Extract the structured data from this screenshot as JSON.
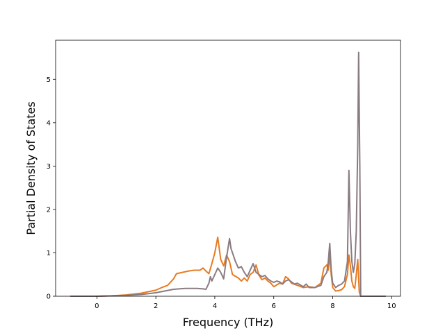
{
  "chart_data": {
    "type": "line",
    "title": "",
    "xlabel": "Frequency (THz)",
    "ylabel": "Partial Density of States",
    "xlim": [
      -1.4,
      10.3
    ],
    "ylim": [
      0,
      5.9
    ],
    "xticks": [
      0,
      2,
      4,
      6,
      8,
      10
    ],
    "yticks": [
      0,
      1,
      2,
      3,
      4,
      5
    ],
    "xtick_labels": [
      "0",
      "2",
      "4",
      "6",
      "8",
      "10"
    ],
    "ytick_labels": [
      "0",
      "1",
      "2",
      "3",
      "4",
      "5"
    ],
    "grid": false,
    "legend": "none",
    "series": [
      {
        "color": "#e87b21",
        "points": [
          [
            -0.9,
            0
          ],
          [
            0,
            0
          ],
          [
            0.5,
            0.01
          ],
          [
            1.0,
            0.03
          ],
          [
            1.5,
            0.07
          ],
          [
            2.0,
            0.14
          ],
          [
            2.2,
            0.2
          ],
          [
            2.4,
            0.25
          ],
          [
            2.6,
            0.4
          ],
          [
            2.7,
            0.52
          ],
          [
            2.9,
            0.55
          ],
          [
            3.1,
            0.58
          ],
          [
            3.3,
            0.6
          ],
          [
            3.5,
            0.6
          ],
          [
            3.6,
            0.65
          ],
          [
            3.7,
            0.58
          ],
          [
            3.8,
            0.52
          ],
          [
            3.9,
            0.75
          ],
          [
            4.0,
            1.0
          ],
          [
            4.1,
            1.36
          ],
          [
            4.2,
            0.85
          ],
          [
            4.3,
            0.7
          ],
          [
            4.4,
            0.95
          ],
          [
            4.5,
            0.8
          ],
          [
            4.6,
            0.5
          ],
          [
            4.8,
            0.42
          ],
          [
            4.9,
            0.35
          ],
          [
            5.0,
            0.42
          ],
          [
            5.1,
            0.35
          ],
          [
            5.2,
            0.5
          ],
          [
            5.3,
            0.55
          ],
          [
            5.4,
            0.72
          ],
          [
            5.5,
            0.48
          ],
          [
            5.6,
            0.38
          ],
          [
            5.7,
            0.42
          ],
          [
            5.8,
            0.35
          ],
          [
            5.9,
            0.3
          ],
          [
            6.0,
            0.22
          ],
          [
            6.1,
            0.26
          ],
          [
            6.2,
            0.3
          ],
          [
            6.3,
            0.28
          ],
          [
            6.4,
            0.45
          ],
          [
            6.5,
            0.4
          ],
          [
            6.6,
            0.3
          ],
          [
            6.8,
            0.25
          ],
          [
            7.0,
            0.2
          ],
          [
            7.2,
            0.22
          ],
          [
            7.4,
            0.2
          ],
          [
            7.6,
            0.3
          ],
          [
            7.7,
            0.65
          ],
          [
            7.8,
            0.72
          ],
          [
            7.85,
            0.6
          ],
          [
            7.9,
            0.95
          ],
          [
            7.95,
            0.5
          ],
          [
            8.0,
            0.2
          ],
          [
            8.1,
            0.12
          ],
          [
            8.2,
            0.13
          ],
          [
            8.3,
            0.15
          ],
          [
            8.4,
            0.22
          ],
          [
            8.5,
            0.5
          ],
          [
            8.55,
            0.95
          ],
          [
            8.6,
            0.7
          ],
          [
            8.65,
            0.35
          ],
          [
            8.7,
            0.22
          ],
          [
            8.75,
            0.18
          ],
          [
            8.8,
            0.5
          ],
          [
            8.85,
            0.85
          ],
          [
            8.9,
            0.1
          ],
          [
            8.95,
            0
          ],
          [
            9.2,
            0
          ],
          [
            9.8,
            0
          ]
        ]
      },
      {
        "color": "#8a7b82",
        "points": [
          [
            -0.9,
            0
          ],
          [
            0,
            0
          ],
          [
            0.5,
            0.01
          ],
          [
            1.0,
            0.02
          ],
          [
            1.5,
            0.04
          ],
          [
            2.0,
            0.08
          ],
          [
            2.3,
            0.12
          ],
          [
            2.6,
            0.16
          ],
          [
            3.0,
            0.18
          ],
          [
            3.4,
            0.18
          ],
          [
            3.6,
            0.17
          ],
          [
            3.7,
            0.16
          ],
          [
            3.8,
            0.3
          ],
          [
            3.85,
            0.45
          ],
          [
            3.9,
            0.35
          ],
          [
            4.0,
            0.5
          ],
          [
            4.1,
            0.65
          ],
          [
            4.2,
            0.55
          ],
          [
            4.3,
            0.4
          ],
          [
            4.4,
            0.9
          ],
          [
            4.5,
            1.33
          ],
          [
            4.55,
            1.1
          ],
          [
            4.6,
            1.0
          ],
          [
            4.7,
            0.8
          ],
          [
            4.8,
            0.65
          ],
          [
            4.9,
            0.68
          ],
          [
            5.0,
            0.55
          ],
          [
            5.1,
            0.45
          ],
          [
            5.2,
            0.6
          ],
          [
            5.3,
            0.75
          ],
          [
            5.4,
            0.55
          ],
          [
            5.5,
            0.5
          ],
          [
            5.6,
            0.45
          ],
          [
            5.7,
            0.48
          ],
          [
            5.8,
            0.4
          ],
          [
            5.9,
            0.35
          ],
          [
            6.0,
            0.32
          ],
          [
            6.1,
            0.35
          ],
          [
            6.2,
            0.33
          ],
          [
            6.3,
            0.28
          ],
          [
            6.4,
            0.35
          ],
          [
            6.5,
            0.38
          ],
          [
            6.6,
            0.33
          ],
          [
            6.7,
            0.28
          ],
          [
            6.8,
            0.3
          ],
          [
            7.0,
            0.22
          ],
          [
            7.1,
            0.28
          ],
          [
            7.2,
            0.2
          ],
          [
            7.4,
            0.2
          ],
          [
            7.6,
            0.25
          ],
          [
            7.7,
            0.45
          ],
          [
            7.8,
            0.55
          ],
          [
            7.85,
            0.8
          ],
          [
            7.9,
            1.22
          ],
          [
            7.95,
            0.6
          ],
          [
            8.0,
            0.3
          ],
          [
            8.1,
            0.2
          ],
          [
            8.2,
            0.25
          ],
          [
            8.3,
            0.28
          ],
          [
            8.4,
            0.35
          ],
          [
            8.5,
            0.8
          ],
          [
            8.55,
            2.9
          ],
          [
            8.6,
            1.5
          ],
          [
            8.65,
            0.8
          ],
          [
            8.7,
            0.55
          ],
          [
            8.75,
            0.75
          ],
          [
            8.8,
            1.5
          ],
          [
            8.85,
            3.5
          ],
          [
            8.88,
            5.62
          ],
          [
            8.92,
            3.0
          ],
          [
            8.95,
            0
          ],
          [
            9.2,
            0
          ],
          [
            9.8,
            0
          ]
        ]
      }
    ]
  }
}
